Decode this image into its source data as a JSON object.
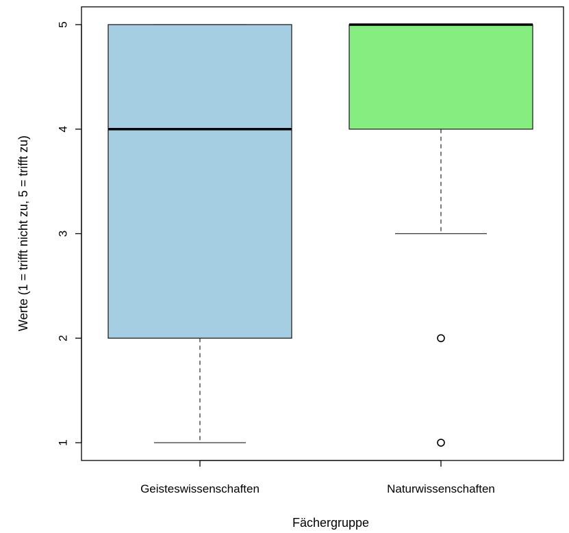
{
  "chart_data": {
    "type": "boxplot",
    "title": "",
    "xlabel": "Fächergruppe",
    "ylabel": "Werte (1 = trifft nicht zu, 5 = trifft zu)",
    "ylim": [
      0.83,
      5.17
    ],
    "yticks": [
      1,
      2,
      3,
      4,
      5
    ],
    "grid": false,
    "categories": [
      "Geisteswissenschaften",
      "Naturwissenschaften"
    ],
    "boxes": [
      {
        "name": "Geisteswissenschaften",
        "whisker_low": 1,
        "q1": 2,
        "median": 4,
        "q3": 5,
        "whisker_high": 5,
        "outliers": [],
        "color": "#a6cee3"
      },
      {
        "name": "Naturwissenschaften",
        "whisker_low": 3,
        "q1": 4,
        "median": 5,
        "q3": 5,
        "whisker_high": 5,
        "outliers": [
          2,
          1
        ],
        "color": "#86ed80"
      }
    ]
  }
}
